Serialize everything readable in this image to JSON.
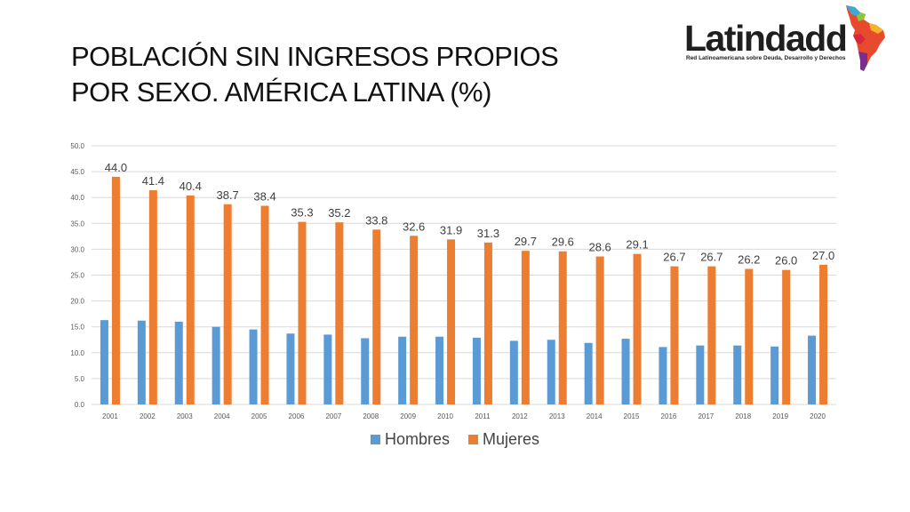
{
  "title": {
    "line1": "POBLACIÓN SIN INGRESOS PROPIOS",
    "line2": "POR SEXO. AMÉRICA LATINA (%)"
  },
  "logo": {
    "wordmark": "Latindadd",
    "tagline": "Red Latinoamericana sobre Deuda, Desarrollo y Derechos"
  },
  "colors": {
    "hombres": "#5b9bd5",
    "mujeres": "#ed7d31",
    "grid": "#d9d9d9",
    "axis_text": "#595959",
    "label_text": "#404040"
  },
  "chart_data": {
    "type": "bar",
    "title": "",
    "xlabel": "",
    "ylabel": "",
    "ylim": [
      0,
      50
    ],
    "yticks": [
      "0.0",
      "5.0",
      "10.0",
      "15.0",
      "20.0",
      "25.0",
      "30.0",
      "35.0",
      "40.0",
      "45.0",
      "50.0"
    ],
    "grid": true,
    "legend_position": "bottom",
    "categories": [
      "2001",
      "2002",
      "2003",
      "2004",
      "2005",
      "2006",
      "2007",
      "2008",
      "2009",
      "2010",
      "2011",
      "2012",
      "2013",
      "2014",
      "2015",
      "2016",
      "2017",
      "2018",
      "2019",
      "2020"
    ],
    "series": [
      {
        "name": "Hombres",
        "values": [
          16.3,
          16.2,
          16.0,
          15.0,
          14.5,
          13.7,
          13.5,
          12.8,
          13.1,
          13.1,
          12.9,
          12.3,
          12.5,
          11.9,
          12.7,
          11.1,
          11.4,
          11.4,
          11.2,
          13.3
        ],
        "labels": []
      },
      {
        "name": "Mujeres",
        "values": [
          44.0,
          41.4,
          40.4,
          38.7,
          38.4,
          35.3,
          35.2,
          33.8,
          32.6,
          31.9,
          31.3,
          29.7,
          29.6,
          28.6,
          29.1,
          26.7,
          26.7,
          26.2,
          26.0,
          27.0
        ],
        "labels": [
          "44.0",
          "41.4",
          "40.4",
          "38.7",
          "38.4",
          "35.3",
          "35.2",
          "33.8",
          "32.6",
          "31.9",
          "31.3",
          "29.7",
          "29.6",
          "28.6",
          "29.1",
          "26.7",
          "26.7",
          "26.2",
          "26.0",
          "27.0"
        ]
      }
    ]
  }
}
